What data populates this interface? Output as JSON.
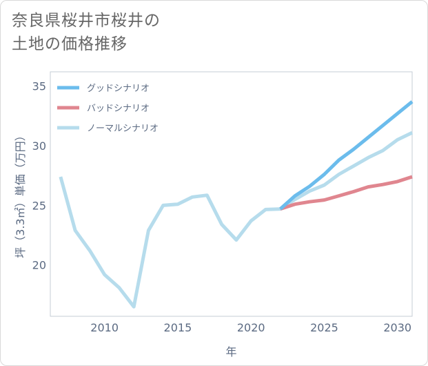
{
  "title_line1": "奈良県桜井市桜井の",
  "title_line2": "土地の価格推移",
  "chart_data": {
    "type": "line",
    "xlabel": "年",
    "ylabel": "坪（3.3㎡）単価（万円）",
    "xlim": [
      2006.3,
      2031
    ],
    "ylim": [
      15.7,
      36.2
    ],
    "xticks": [
      2010,
      2015,
      2020,
      2025,
      2030
    ],
    "yticks": [
      20,
      25,
      30,
      35
    ],
    "grid": true,
    "legend_position": "top-left",
    "series": [
      {
        "name": "グッドシナリオ",
        "color": "#6bbcec",
        "x": [
          2022,
          2023,
          2024,
          2025,
          2026,
          2027,
          2028,
          2029,
          2030,
          2031
        ],
        "y": [
          24.7,
          25.8,
          26.6,
          27.6,
          28.8,
          29.7,
          30.7,
          31.7,
          32.7,
          33.7
        ]
      },
      {
        "name": "バッドシナリオ",
        "color": "#e0868f",
        "x": [
          2022,
          2023,
          2024,
          2025,
          2026,
          2027,
          2028,
          2029,
          2030,
          2031
        ],
        "y": [
          24.7,
          25.1,
          25.3,
          25.45,
          25.8,
          26.15,
          26.55,
          26.75,
          27.0,
          27.4
        ]
      },
      {
        "name": "ノーマルシナリオ",
        "color": "#b6dcec",
        "x": [
          2007,
          2008,
          2009,
          2010,
          2011,
          2012,
          2013,
          2014,
          2015,
          2016,
          2017,
          2018,
          2019,
          2020,
          2021,
          2022,
          2023,
          2024,
          2025,
          2026,
          2027,
          2028,
          2029,
          2030,
          2031
        ],
        "y": [
          27.4,
          22.9,
          21.2,
          19.2,
          18.1,
          16.5,
          22.9,
          25.0,
          25.1,
          25.7,
          25.85,
          23.4,
          22.1,
          23.7,
          24.65,
          24.7,
          25.5,
          26.2,
          26.7,
          27.6,
          28.3,
          29.0,
          29.6,
          30.5,
          31.1
        ]
      }
    ]
  }
}
